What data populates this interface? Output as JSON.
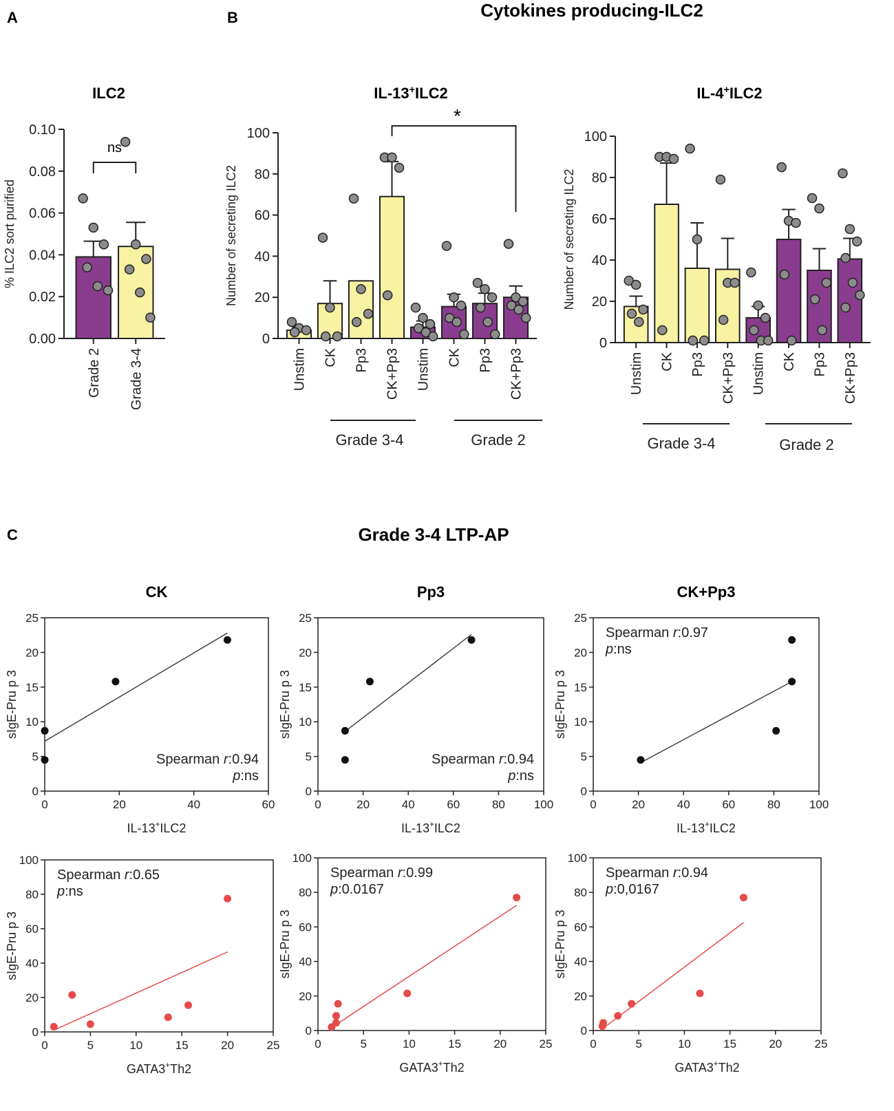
{
  "panel_labels": {
    "a": "A",
    "b": "B",
    "c": "C"
  },
  "headings": {
    "b": "Cytokines producing-ILC2",
    "c": "Grade 3-4 LTP-AP"
  },
  "colors": {
    "purple": "#8a3d8f",
    "yellow": "#f8f3a3",
    "dot": "#8c8c8c",
    "black": "#111111",
    "red": "#e74a4a"
  },
  "chart_data": [
    {
      "id": "A",
      "type": "bar",
      "title": "ILC2",
      "ylabel": "% ILC2 sort purified",
      "ylim": [
        0,
        0.1
      ],
      "yticks": [
        "0.00",
        "0.02",
        "0.04",
        "0.06",
        "0.08",
        "0.10"
      ],
      "categories": [
        "Grade 2",
        "Grade 3-4"
      ],
      "colors": [
        "purple",
        "yellow"
      ],
      "values": [
        0.039,
        0.044
      ],
      "sem": [
        0.0075,
        0.0115
      ],
      "points": [
        [
          0.067,
          0.053,
          0.045,
          0.034,
          0.025,
          0.023
        ],
        [
          0.094,
          0.045,
          0.038,
          0.033,
          0.022,
          0.01
        ]
      ],
      "annotation": "ns"
    },
    {
      "id": "B1",
      "type": "bar",
      "title": "IL-13",
      "title_sup": "+",
      "title_rest": "ILC2",
      "ylabel": "Number of secreting ILC2",
      "ylim": [
        0,
        100
      ],
      "yticks": [
        "0",
        "20",
        "40",
        "60",
        "80",
        "100"
      ],
      "categories": [
        "Unstim",
        "CK",
        "Pp3",
        "CK+Pp3",
        "Unstim",
        "CK",
        "Pp3",
        "CK+Pp3"
      ],
      "colors": [
        "yellow",
        "yellow",
        "yellow",
        "yellow",
        "purple",
        "purple",
        "purple",
        "purple"
      ],
      "values": [
        4,
        17,
        28,
        69,
        5.5,
        15.5,
        17,
        20
      ],
      "sem": [
        1.5,
        11,
        0,
        17,
        3,
        6,
        5,
        5.5
      ],
      "points": [
        [
          8,
          5,
          4,
          3
        ],
        [
          49,
          15,
          1,
          1
        ],
        [
          68,
          24,
          12,
          8
        ],
        [
          88,
          88,
          83,
          21
        ],
        [
          15,
          10,
          7,
          5,
          3,
          1
        ],
        [
          45,
          20,
          16,
          10,
          8,
          2
        ],
        [
          27,
          24,
          20,
          15,
          8,
          2
        ],
        [
          46,
          20,
          18,
          16,
          14,
          10
        ]
      ],
      "groups": [
        "Grade 3-4",
        "Grade 2"
      ],
      "significance": "*"
    },
    {
      "id": "B2",
      "type": "bar",
      "title": "IL-4",
      "title_sup": "+",
      "title_rest": "ILC2",
      "ylabel": "Number of secreting ILC2",
      "ylim": [
        0,
        100
      ],
      "yticks": [
        "0",
        "20",
        "40",
        "60",
        "80",
        "100"
      ],
      "categories": [
        "Unstim",
        "CK",
        "Pp3",
        "CK+Pp3",
        "Unstim",
        "CK",
        "Pp3",
        "CK+Pp3"
      ],
      "colors": [
        "yellow",
        "yellow",
        "yellow",
        "yellow",
        "purple",
        "purple",
        "purple",
        "purple"
      ],
      "values": [
        17.5,
        67,
        36,
        35.5,
        12,
        50,
        35,
        40.5
      ],
      "sem": [
        5,
        20,
        22,
        15,
        5.5,
        14.5,
        10.5,
        10
      ],
      "points": [
        [
          30,
          28,
          16,
          14,
          10
        ],
        [
          90,
          90,
          89,
          6
        ],
        [
          94,
          50,
          1,
          1
        ],
        [
          79,
          29,
          29,
          11
        ],
        [
          34,
          18,
          12,
          6,
          1,
          1
        ],
        [
          85,
          59,
          58,
          33,
          1
        ],
        [
          70,
          65,
          29,
          21,
          6
        ],
        [
          82,
          55,
          49,
          41,
          29,
          23,
          17
        ]
      ],
      "groups": [
        "Grade 3-4",
        "Grade 2"
      ]
    },
    {
      "id": "C-CK",
      "type": "scatter",
      "title": "CK",
      "xlabel_pre": "IL-13",
      "xlabel_sup": "+",
      "xlabel_rest": "ILC2",
      "ylabel": "sIgE-Pru p 3",
      "xlim": [
        0,
        60
      ],
      "ylim": [
        0,
        25
      ],
      "xticks": [
        "0",
        "20",
        "40",
        "60"
      ],
      "yticks": [
        "0",
        "5",
        "10",
        "15",
        "20",
        "25"
      ],
      "x": [
        0,
        0,
        19,
        49
      ],
      "y": [
        4.5,
        8.7,
        15.8,
        21.8
      ],
      "fit": [
        [
          0,
          7.2
        ],
        [
          49,
          22.8
        ]
      ],
      "stat_r_label": "Spearman ",
      "stat_r_italic": "r",
      "stat_r_value": ":0.94",
      "stat_p_italic": "p",
      "stat_p_value": ":ns"
    },
    {
      "id": "C-Pp3",
      "type": "scatter",
      "title": "Pp3",
      "xlabel_pre": "IL-13",
      "xlabel_sup": "+",
      "xlabel_rest": "ILC2",
      "ylabel": "sIgE-Pru p 3",
      "xlim": [
        0,
        100
      ],
      "ylim": [
        0,
        25
      ],
      "xticks": [
        "0",
        "20",
        "40",
        "60",
        "80",
        "100"
      ],
      "yticks": [
        "0",
        "5",
        "10",
        "15",
        "20",
        "25"
      ],
      "x": [
        12,
        12,
        23,
        68
      ],
      "y": [
        4.5,
        8.7,
        15.8,
        21.8
      ],
      "fit": [
        [
          12,
          8.6
        ],
        [
          68,
          22.6
        ]
      ],
      "stat_r_label": "Spearman ",
      "stat_r_italic": "r",
      "stat_r_value": ":0.94",
      "stat_p_italic": "p",
      "stat_p_value": ":ns"
    },
    {
      "id": "C-CKPp3",
      "type": "scatter",
      "title": "CK+Pp3",
      "xlabel_pre": "IL-13",
      "xlabel_sup": "+",
      "xlabel_rest": "ILC2",
      "ylabel": "sIgE-Pru p 3",
      "xlim": [
        0,
        100
      ],
      "ylim": [
        0,
        25
      ],
      "xticks": [
        "0",
        "20",
        "40",
        "60",
        "80",
        "100"
      ],
      "yticks": [
        "0",
        "5",
        "10",
        "15",
        "20",
        "25"
      ],
      "x": [
        21,
        81,
        88,
        88
      ],
      "y": [
        4.5,
        8.7,
        15.8,
        21.8
      ],
      "fit": [
        [
          21,
          4.1
        ],
        [
          88,
          15.8
        ]
      ],
      "stat_r_label": "Spearman ",
      "stat_r_italic": "r",
      "stat_r_value": ":0.97",
      "stat_p_italic": "p",
      "stat_p_value": ":ns"
    },
    {
      "id": "C-GATA1",
      "type": "scatter",
      "title": "",
      "xlabel_pre": "GATA3",
      "xlabel_sup": "+",
      "xlabel_rest": "Th2",
      "ylabel": "sIgE-Pru p 3",
      "xlim": [
        0,
        25
      ],
      "ylim": [
        0,
        100
      ],
      "xticks": [
        "0",
        "5",
        "10",
        "15",
        "20",
        "25"
      ],
      "yticks": [
        "0",
        "20",
        "40",
        "60",
        "80",
        "100"
      ],
      "x": [
        1,
        3,
        5,
        13.5,
        15.7,
        20
      ],
      "y": [
        3,
        21.5,
        4.5,
        8.5,
        15.5,
        77.5
      ],
      "fit": [
        [
          1,
          1
        ],
        [
          20,
          46.5
        ]
      ],
      "stat_r_label": "Spearman ",
      "stat_r_italic": "r",
      "stat_r_value": ":0.65",
      "stat_p_italic": "p",
      "stat_p_value": ":ns"
    },
    {
      "id": "C-GATA2",
      "type": "scatter",
      "title": "",
      "xlabel_pre": "GATA3",
      "xlabel_sup": "+",
      "xlabel_rest": "Th2",
      "ylabel": "sIgE-Pru p 3",
      "xlim": [
        0,
        25
      ],
      "ylim": [
        0,
        100
      ],
      "xticks": [
        "0",
        "5",
        "10",
        "15",
        "20",
        "25"
      ],
      "yticks": [
        "0",
        "20",
        "40",
        "60",
        "80",
        "100"
      ],
      "x": [
        1.5,
        2,
        2,
        2.2,
        9.8,
        21.8
      ],
      "y": [
        2,
        4.5,
        8.5,
        15.5,
        21.5,
        77
      ],
      "fit": [
        [
          1.3,
          1
        ],
        [
          21.8,
          72.5
        ]
      ],
      "stat_r_label": "Spearman ",
      "stat_r_italic": "r",
      "stat_r_value": ":0.99",
      "stat_p_italic": "p",
      "stat_p_value": ":0.0167"
    },
    {
      "id": "C-GATA3",
      "type": "scatter",
      "title": "",
      "xlabel_pre": "GATA3",
      "xlabel_sup": "+",
      "xlabel_rest": "Th2",
      "ylabel": "sIgE-Pru p 3",
      "xlim": [
        0,
        25
      ],
      "ylim": [
        0,
        100
      ],
      "xticks": [
        "0",
        "5",
        "10",
        "15",
        "20",
        "25"
      ],
      "yticks": [
        "0",
        "20",
        "40",
        "60",
        "80",
        "100"
      ],
      "x": [
        1,
        1.1,
        2.7,
        4.2,
        11.7,
        16.5
      ],
      "y": [
        2.5,
        4.5,
        8.5,
        15.5,
        21.5,
        77
      ],
      "fit": [
        [
          1,
          1
        ],
        [
          16.5,
          62.5
        ]
      ],
      "stat_r_label": "Spearman ",
      "stat_r_italic": "r",
      "stat_r_value": ":0.94",
      "stat_p_italic": "p",
      "stat_p_value": ":0,0167"
    }
  ]
}
